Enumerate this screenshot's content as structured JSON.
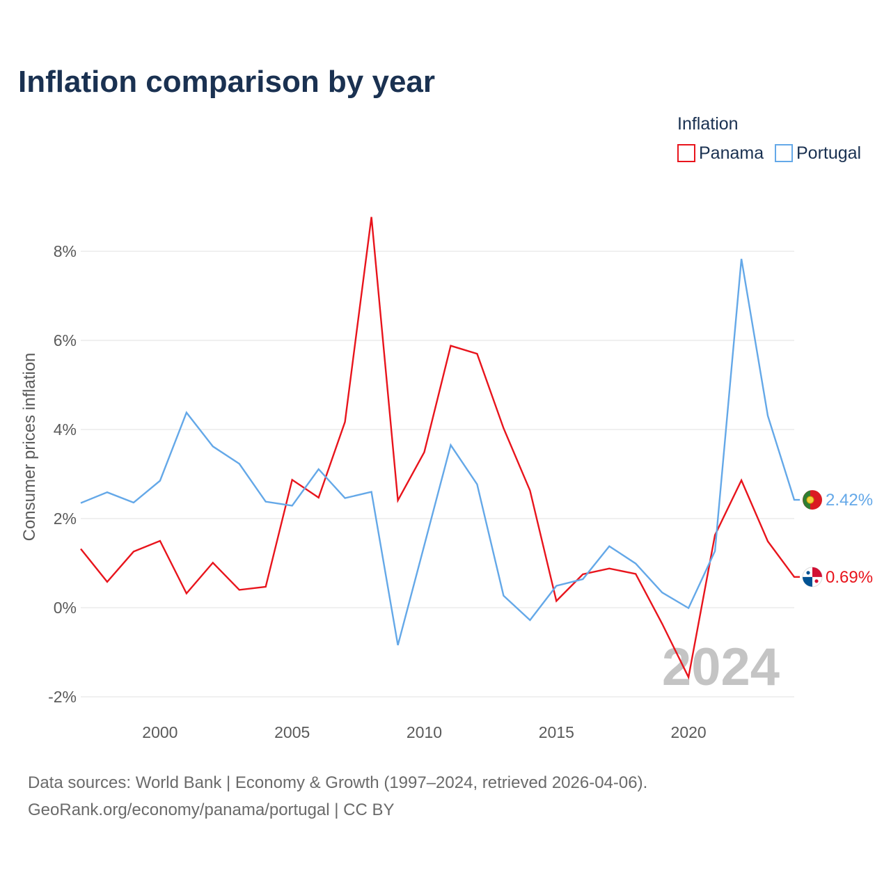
{
  "header": {
    "title": "Inflation comparison by year"
  },
  "legend": {
    "title": "Inflation"
  },
  "year_overlay": "2024",
  "footer": {
    "line1": "Data sources: World Bank | Economy & Growth (1997–2024, retrieved 2026-04-06).",
    "line2": "GeoRank.org/economy/panama/portugal | CC BY"
  },
  "colors": {
    "panama": "#e8141c",
    "portugal": "#64a8e8",
    "grid": "#e6e6e6",
    "title": "#1a3151"
  },
  "chart_data": {
    "type": "line",
    "title": "Inflation comparison by year",
    "ylabel": "Consumer prices inflation",
    "xlabel": "",
    "ylim": [
      -2.2,
      9.0
    ],
    "xlim": [
      1997,
      2024
    ],
    "yticks": [
      -2,
      0,
      2,
      4,
      6,
      8
    ],
    "ytick_labels": [
      "-2%",
      "0%",
      "2%",
      "4%",
      "6%",
      "8%"
    ],
    "xticks": [
      2000,
      2005,
      2010,
      2015,
      2020
    ],
    "xtick_labels": [
      "2000",
      "2005",
      "2010",
      "2015",
      "2020"
    ],
    "legend_position": "top-right",
    "x": [
      1997,
      1998,
      1999,
      2000,
      2001,
      2002,
      2003,
      2004,
      2005,
      2006,
      2007,
      2008,
      2009,
      2010,
      2011,
      2012,
      2013,
      2014,
      2015,
      2016,
      2017,
      2018,
      2019,
      2020,
      2021,
      2022,
      2023,
      2024
    ],
    "series": [
      {
        "name": "Panama",
        "color_key": "panama",
        "end_label": "0.69%",
        "values": [
          1.32,
          0.58,
          1.26,
          1.5,
          0.32,
          1.01,
          0.4,
          0.47,
          2.87,
          2.47,
          4.17,
          8.77,
          2.41,
          3.49,
          5.88,
          5.7,
          4.03,
          2.63,
          0.15,
          0.75,
          0.88,
          0.76,
          -0.36,
          -1.56,
          1.63,
          2.86,
          1.49,
          0.69
        ]
      },
      {
        "name": "Portugal",
        "color_key": "portugal",
        "end_label": "2.42%",
        "values": [
          2.35,
          2.59,
          2.36,
          2.85,
          4.38,
          3.62,
          3.23,
          2.38,
          2.29,
          3.11,
          2.46,
          2.6,
          -0.84,
          1.4,
          3.65,
          2.77,
          0.27,
          -0.28,
          0.49,
          0.64,
          1.38,
          0.99,
          0.34,
          -0.01,
          1.27,
          7.83,
          4.31,
          2.42
        ]
      }
    ]
  }
}
